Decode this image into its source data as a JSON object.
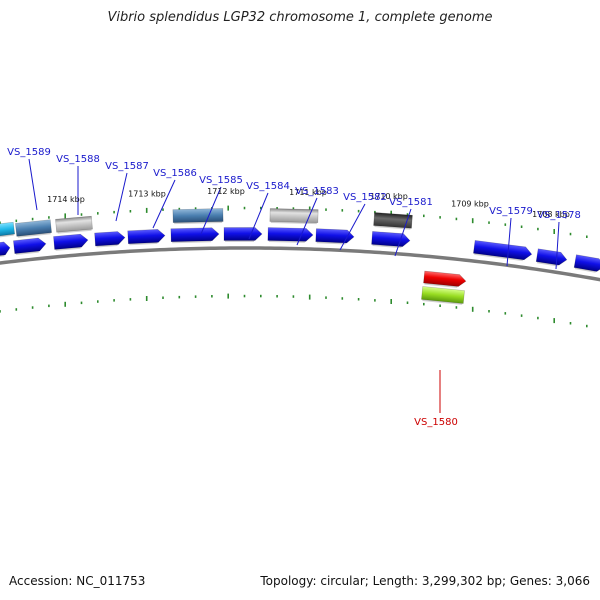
{
  "title": "Vibrio splendidus LGP32 chromosome 1, complete genome",
  "footer": {
    "accession": "Accession: NC_011753",
    "summary": "Topology: circular; Length: 3,299,302 bp; Genes: 3,066"
  },
  "colors": {
    "gene_label": "#1a1acc",
    "highlight_label": "#cc0000",
    "backbone": "#7a7a7a",
    "tick": "#2e8b2e",
    "forward_gene": "#1010e8",
    "steelblue_gene": "#4a7fb0",
    "gray_gene": "#b8b8b8",
    "darkgray_gene": "#555555",
    "cyan_gene": "#20b8e8",
    "red_gene": "#ee0000",
    "lime_gene": "#99dd22"
  },
  "kbp_labels": [
    "1714 kbp",
    "1713 kbp",
    "1712 kbp",
    "1711 kbp",
    "1710 kbp",
    "1709 kbp",
    "1708 kbp"
  ],
  "genes": [
    {
      "label": "VS_1589",
      "highlight": false
    },
    {
      "label": "VS_1588",
      "highlight": false
    },
    {
      "label": "VS_1587",
      "highlight": false
    },
    {
      "label": "VS_1586",
      "highlight": false
    },
    {
      "label": "VS_1585",
      "highlight": false
    },
    {
      "label": "VS_1584",
      "highlight": false
    },
    {
      "label": "VS_1583",
      "highlight": false
    },
    {
      "label": "VS_1582",
      "highlight": false
    },
    {
      "label": "VS_1581",
      "highlight": false
    },
    {
      "label": "VS_1579",
      "highlight": false
    },
    {
      "label": "VS_1578",
      "highlight": false
    },
    {
      "label": "VS_1580",
      "highlight": true
    }
  ]
}
